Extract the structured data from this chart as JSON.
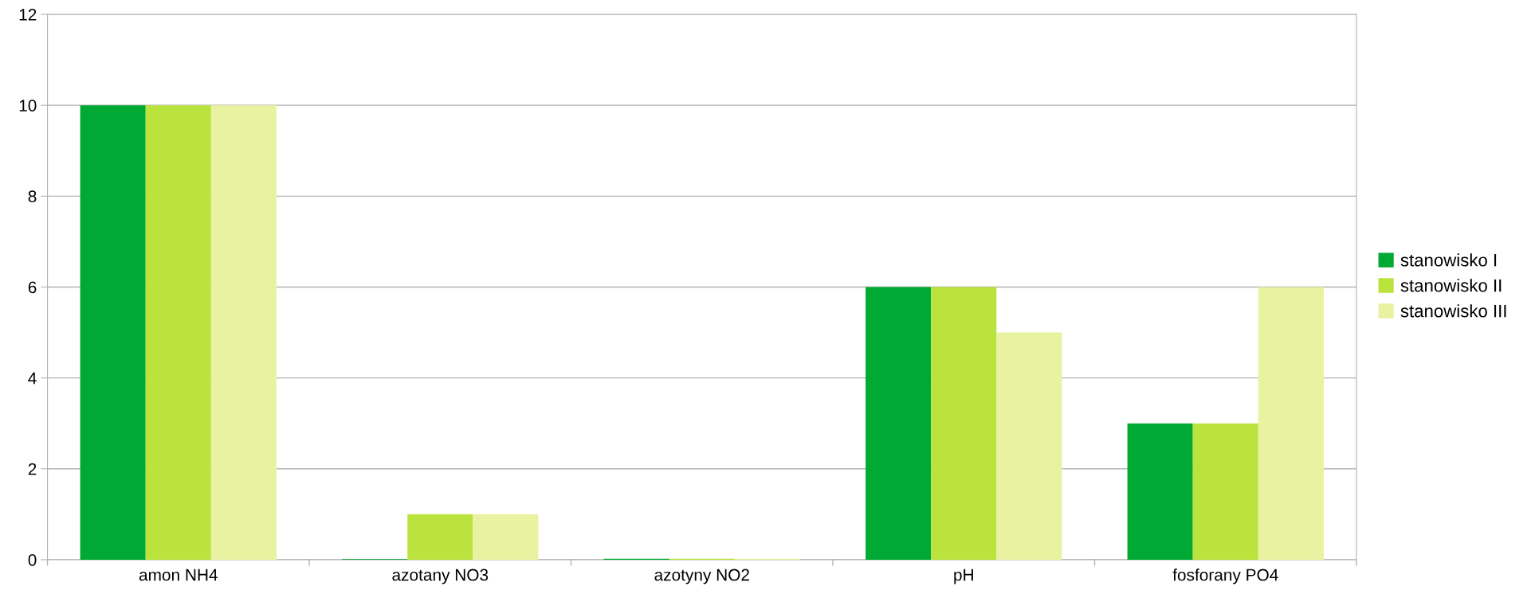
{
  "chart_data": {
    "type": "bar",
    "categories": [
      "amon NH4",
      "azotany NO3",
      "azotyny NO2",
      "pH",
      "fosforany PO4"
    ],
    "series": [
      {
        "name": "stanowisko I",
        "color": "#00a933",
        "values": [
          10,
          0.01,
          0.02,
          6,
          3
        ]
      },
      {
        "name": "stanowisko II",
        "color": "#bbe33d",
        "values": [
          10,
          1,
          0.02,
          6,
          3
        ]
      },
      {
        "name": "stanowisko III",
        "color": "#e8f2a1",
        "values": [
          10,
          1,
          0.02,
          5,
          6
        ]
      }
    ],
    "ylim": [
      0,
      12
    ],
    "yticks": [
      0,
      2,
      4,
      6,
      8,
      10,
      12
    ],
    "grid": "y",
    "legend": "right"
  }
}
